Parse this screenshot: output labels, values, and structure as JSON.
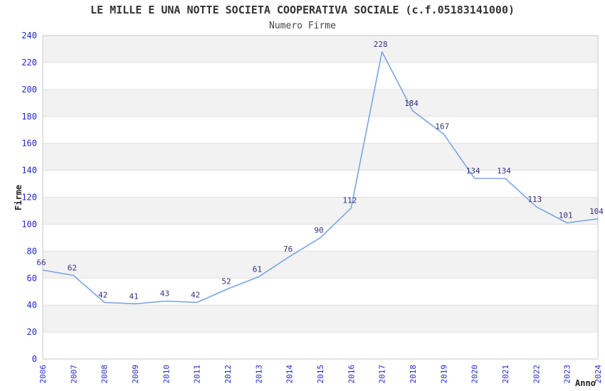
{
  "chart_data": {
    "type": "line",
    "title": "LE MILLE E UNA NOTTE SOCIETA COOPERATIVA SOCIALE (c.f.05183141000)",
    "subtitle": "Numero Firme",
    "xlabel": "Anno",
    "ylabel": "Firme",
    "categories": [
      "2006",
      "2007",
      "2008",
      "2009",
      "2010",
      "2011",
      "2012",
      "2013",
      "2014",
      "2015",
      "2016",
      "2017",
      "2018",
      "2019",
      "2020",
      "2021",
      "2022",
      "2023",
      "2024"
    ],
    "values": [
      66,
      62,
      42,
      41,
      43,
      42,
      52,
      61,
      76,
      90,
      112,
      228,
      184,
      167,
      134,
      134,
      113,
      101,
      104
    ],
    "point_labels": [
      "66",
      "62",
      "42",
      "41",
      "43",
      "42",
      "52",
      "61",
      "76",
      "90",
      "112",
      "228",
      "184",
      "167",
      "134",
      "134",
      "113",
      "101",
      "104"
    ],
    "yticks": [
      0,
      20,
      40,
      60,
      80,
      100,
      120,
      140,
      160,
      180,
      200,
      220,
      240
    ],
    "ylim": [
      0,
      240
    ],
    "grid": "horizontal-alternating-bands",
    "legend": "none",
    "colors": {
      "line": "#79a6e3",
      "tick_label": "#2428cd",
      "point_label": "#32327d",
      "band_gray": "#f2f2f2",
      "band_white": "#ffffff",
      "grid_line": "#e0e0e0",
      "frame": "#c8c8c8",
      "title": "#333333",
      "subtitle": "#444444",
      "axis_title": "#222222",
      "background": "#ffffff"
    }
  }
}
